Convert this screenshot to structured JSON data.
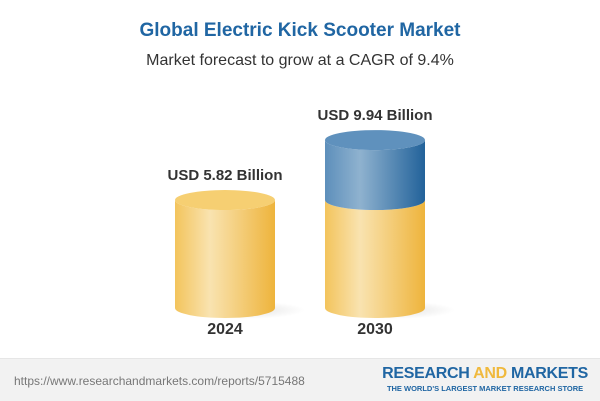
{
  "chart_data": {
    "type": "bar",
    "style": "3d-cylinder",
    "title": "Global Electric Kick Scooter Market",
    "subtitle": "Market forecast to grow at a CAGR of 9.4%",
    "categories": [
      "2024",
      "2030"
    ],
    "values": [
      5.82,
      9.94
    ],
    "data_labels": [
      "USD 5.82 Billion",
      "USD 9.94 Billion"
    ],
    "unit": "USD Billion",
    "colors": {
      "base": "#f2c45a",
      "growth": "#2f6fa5"
    }
  },
  "footer": {
    "url": "https://www.researchandmarkets.com/reports/5715488",
    "logo_part1": "RESEARCH ",
    "logo_part2": "AND",
    "logo_part3": " MARKETS",
    "tagline": "THE WORLD'S LARGEST MARKET RESEARCH STORE"
  }
}
